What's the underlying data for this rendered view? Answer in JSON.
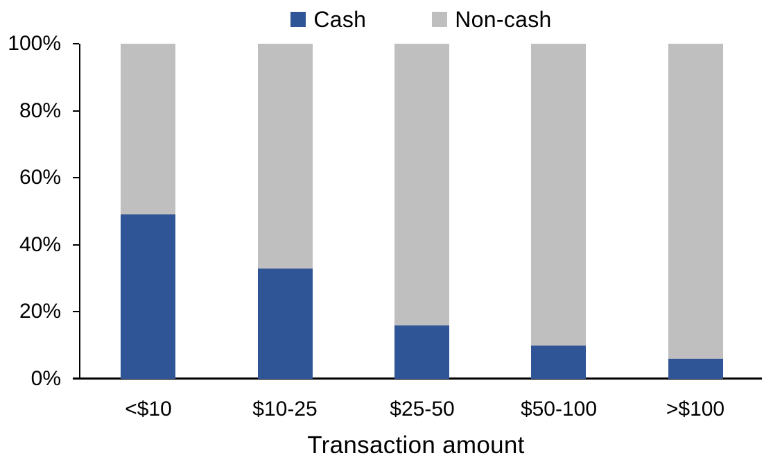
{
  "chart_data": {
    "type": "bar",
    "subtype": "stacked-100-percent",
    "title": "",
    "xlabel": "Transaction amount",
    "ylabel": "",
    "categories": [
      "<$10",
      "$10-25",
      "$25-50",
      "$50-100",
      ">$100"
    ],
    "series": [
      {
        "name": "Cash",
        "color": "#2F5597",
        "values": [
          49,
          33,
          16,
          10,
          6
        ]
      },
      {
        "name": "Non-cash",
        "color": "#BFBFBF",
        "values": [
          51,
          67,
          84,
          90,
          94
        ]
      }
    ],
    "ylim": [
      0,
      100
    ],
    "yticks": [
      0,
      20,
      40,
      60,
      80,
      100
    ],
    "ytick_labels": [
      "0%",
      "20%",
      "40%",
      "60%",
      "80%",
      "100%"
    ],
    "legend_position": "top-center",
    "grid": false,
    "axis_color": "#000000",
    "text_color": "#000000",
    "background_color": "#FFFFFF"
  }
}
